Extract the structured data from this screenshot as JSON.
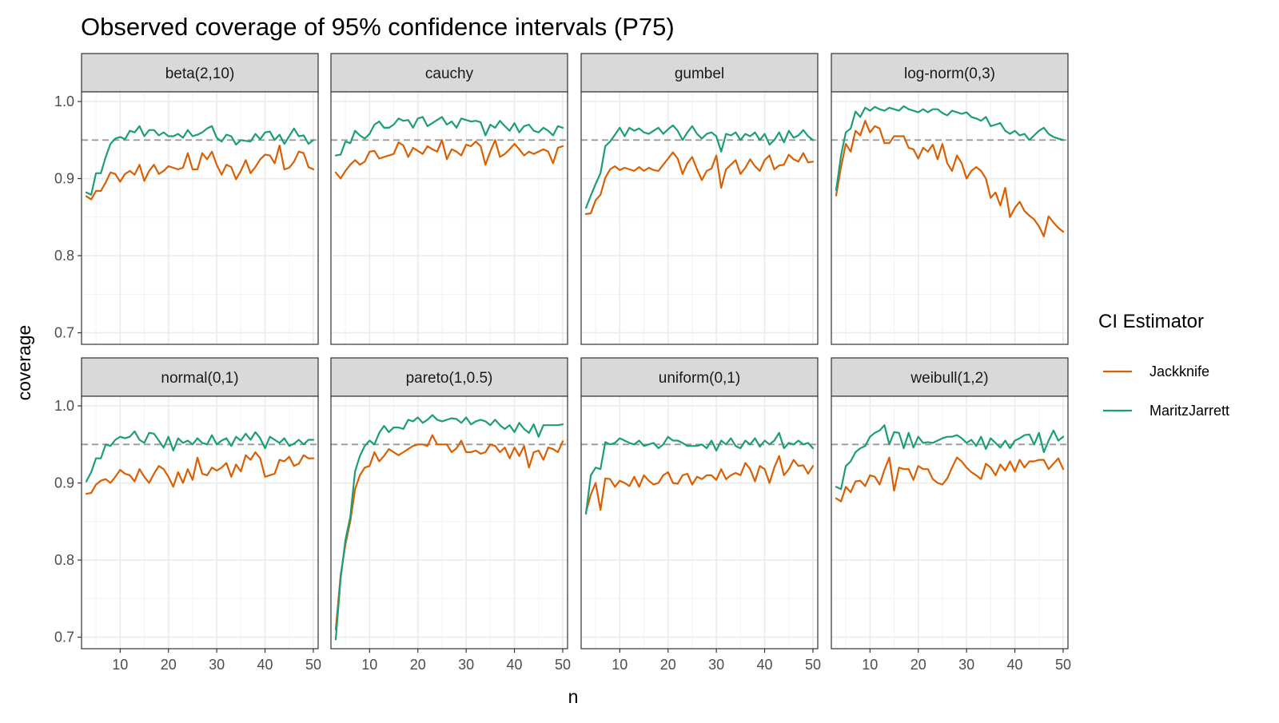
{
  "chart_data": {
    "type": "line",
    "title": "Observed coverage of 95% confidence intervals (P75)",
    "xlabel": "n",
    "ylabel": "coverage",
    "xlim": [
      2,
      51
    ],
    "ylim": [
      0.685,
      1.0125
    ],
    "x_ticks": [
      10,
      20,
      30,
      40,
      50
    ],
    "y_ticks": [
      0.7,
      0.8,
      0.9,
      1.0
    ],
    "y_tick_labels": [
      "0.7",
      "0.8",
      "0.9",
      "1.0"
    ],
    "reference_line": 0.95,
    "grid": true,
    "facet_layout": {
      "rows": 2,
      "cols": 4
    },
    "legend": {
      "title": "CI Estimator",
      "position": "right",
      "entries": [
        {
          "name": "Jackknife",
          "color": "#d95f02"
        },
        {
          "name": "MaritzJarrett",
          "color": "#1b9e77"
        }
      ]
    },
    "x": [
      3,
      4,
      5,
      6,
      7,
      8,
      9,
      10,
      11,
      12,
      13,
      14,
      15,
      16,
      17,
      18,
      19,
      20,
      21,
      22,
      23,
      24,
      25,
      26,
      27,
      28,
      29,
      30,
      31,
      32,
      33,
      34,
      35,
      36,
      37,
      38,
      39,
      40,
      41,
      42,
      43,
      44,
      45,
      46,
      47,
      48,
      49,
      50
    ],
    "panels": [
      {
        "label": "beta(2,10)",
        "series": [
          {
            "name": "Jackknife",
            "values": [
              0.877,
              0.873,
              0.884,
              0.884,
              0.895,
              0.908,
              0.906,
              0.896,
              0.906,
              0.91,
              0.905,
              0.918,
              0.897,
              0.91,
              0.918,
              0.906,
              0.91,
              0.916,
              0.914,
              0.912,
              0.914,
              0.933,
              0.912,
              0.912,
              0.933,
              0.925,
              0.935,
              0.918,
              0.905,
              0.918,
              0.915,
              0.899,
              0.91,
              0.924,
              0.907,
              0.915,
              0.925,
              0.931,
              0.93,
              0.92,
              0.943,
              0.912,
              0.914,
              0.922,
              0.935,
              0.933,
              0.915,
              0.912
            ]
          },
          {
            "name": "MaritzJarrett",
            "values": [
              0.882,
              0.879,
              0.907,
              0.907,
              0.928,
              0.945,
              0.952,
              0.954,
              0.951,
              0.962,
              0.96,
              0.968,
              0.955,
              0.963,
              0.963,
              0.956,
              0.96,
              0.955,
              0.955,
              0.958,
              0.953,
              0.963,
              0.955,
              0.957,
              0.96,
              0.965,
              0.968,
              0.953,
              0.948,
              0.957,
              0.955,
              0.944,
              0.95,
              0.949,
              0.948,
              0.958,
              0.951,
              0.96,
              0.961,
              0.95,
              0.957,
              0.945,
              0.955,
              0.965,
              0.955,
              0.956,
              0.945,
              0.95
            ]
          }
        ]
      },
      {
        "label": "cauchy",
        "series": [
          {
            "name": "Jackknife",
            "values": [
              0.908,
              0.9,
              0.91,
              0.918,
              0.924,
              0.918,
              0.922,
              0.935,
              0.936,
              0.926,
              0.928,
              0.93,
              0.932,
              0.947,
              0.943,
              0.928,
              0.94,
              0.936,
              0.932,
              0.942,
              0.938,
              0.935,
              0.95,
              0.925,
              0.938,
              0.935,
              0.93,
              0.944,
              0.942,
              0.948,
              0.942,
              0.918,
              0.935,
              0.95,
              0.928,
              0.932,
              0.938,
              0.945,
              0.938,
              0.93,
              0.935,
              0.932,
              0.935,
              0.938,
              0.935,
              0.92,
              0.94,
              0.942
            ]
          },
          {
            "name": "MaritzJarrett",
            "values": [
              0.93,
              0.931,
              0.948,
              0.946,
              0.962,
              0.956,
              0.952,
              0.958,
              0.97,
              0.974,
              0.966,
              0.966,
              0.97,
              0.978,
              0.975,
              0.976,
              0.966,
              0.978,
              0.98,
              0.968,
              0.972,
              0.976,
              0.98,
              0.97,
              0.974,
              0.966,
              0.978,
              0.976,
              0.974,
              0.975,
              0.973,
              0.956,
              0.97,
              0.966,
              0.975,
              0.968,
              0.962,
              0.972,
              0.96,
              0.968,
              0.97,
              0.962,
              0.96,
              0.966,
              0.962,
              0.956,
              0.968,
              0.966
            ]
          }
        ]
      },
      {
        "label": "gumbel",
        "series": [
          {
            "name": "Jackknife",
            "values": [
              0.854,
              0.855,
              0.872,
              0.879,
              0.901,
              0.912,
              0.916,
              0.911,
              0.914,
              0.912,
              0.91,
              0.915,
              0.91,
              0.914,
              0.911,
              0.91,
              0.918,
              0.926,
              0.934,
              0.926,
              0.906,
              0.92,
              0.928,
              0.912,
              0.898,
              0.91,
              0.913,
              0.93,
              0.888,
              0.912,
              0.918,
              0.924,
              0.906,
              0.914,
              0.925,
              0.916,
              0.91,
              0.924,
              0.93,
              0.912,
              0.917,
              0.918,
              0.931,
              0.925,
              0.922,
              0.933,
              0.921,
              0.922
            ]
          },
          {
            "name": "MaritzJarrett",
            "values": [
              0.862,
              0.878,
              0.893,
              0.907,
              0.942,
              0.948,
              0.957,
              0.966,
              0.955,
              0.966,
              0.962,
              0.965,
              0.96,
              0.958,
              0.962,
              0.966,
              0.958,
              0.964,
              0.969,
              0.962,
              0.95,
              0.96,
              0.968,
              0.958,
              0.952,
              0.958,
              0.96,
              0.955,
              0.935,
              0.958,
              0.956,
              0.96,
              0.95,
              0.958,
              0.955,
              0.96,
              0.95,
              0.958,
              0.944,
              0.95,
              0.96,
              0.947,
              0.962,
              0.953,
              0.956,
              0.963,
              0.955,
              0.95
            ]
          }
        ]
      },
      {
        "label": "log-norm(0,3)",
        "series": [
          {
            "name": "Jackknife",
            "values": [
              0.878,
              0.915,
              0.945,
              0.935,
              0.962,
              0.956,
              0.975,
              0.96,
              0.968,
              0.965,
              0.946,
              0.946,
              0.955,
              0.955,
              0.955,
              0.94,
              0.938,
              0.926,
              0.94,
              0.935,
              0.944,
              0.925,
              0.945,
              0.92,
              0.91,
              0.93,
              0.92,
              0.9,
              0.91,
              0.915,
              0.91,
              0.9,
              0.875,
              0.882,
              0.865,
              0.888,
              0.85,
              0.862,
              0.87,
              0.858,
              0.852,
              0.847,
              0.838,
              0.825,
              0.851,
              0.843,
              0.836,
              0.831
            ]
          },
          {
            "name": "MaritzJarrett",
            "values": [
              0.885,
              0.93,
              0.96,
              0.965,
              0.987,
              0.98,
              0.992,
              0.988,
              0.993,
              0.99,
              0.988,
              0.992,
              0.99,
              0.988,
              0.994,
              0.99,
              0.988,
              0.986,
              0.99,
              0.986,
              0.99,
              0.99,
              0.985,
              0.982,
              0.988,
              0.986,
              0.984,
              0.986,
              0.98,
              0.978,
              0.975,
              0.98,
              0.968,
              0.97,
              0.972,
              0.962,
              0.958,
              0.962,
              0.956,
              0.958,
              0.95,
              0.956,
              0.962,
              0.966,
              0.958,
              0.954,
              0.952,
              0.95
            ]
          }
        ]
      },
      {
        "label": "normal(0,1)",
        "series": [
          {
            "name": "Jackknife",
            "values": [
              0.886,
              0.887,
              0.898,
              0.903,
              0.905,
              0.9,
              0.908,
              0.917,
              0.912,
              0.91,
              0.902,
              0.918,
              0.908,
              0.9,
              0.912,
              0.922,
              0.918,
              0.908,
              0.895,
              0.914,
              0.9,
              0.918,
              0.904,
              0.933,
              0.912,
              0.91,
              0.92,
              0.916,
              0.92,
              0.926,
              0.908,
              0.924,
              0.915,
              0.936,
              0.93,
              0.94,
              0.932,
              0.908,
              0.91,
              0.912,
              0.93,
              0.928,
              0.934,
              0.922,
              0.925,
              0.936,
              0.932,
              0.932
            ]
          },
          {
            "name": "MaritzJarrett",
            "values": [
              0.902,
              0.914,
              0.932,
              0.932,
              0.95,
              0.948,
              0.956,
              0.96,
              0.958,
              0.96,
              0.967,
              0.956,
              0.952,
              0.965,
              0.964,
              0.955,
              0.946,
              0.96,
              0.942,
              0.958,
              0.952,
              0.955,
              0.95,
              0.958,
              0.952,
              0.95,
              0.962,
              0.95,
              0.955,
              0.958,
              0.948,
              0.96,
              0.955,
              0.964,
              0.956,
              0.966,
              0.958,
              0.945,
              0.96,
              0.956,
              0.952,
              0.958,
              0.948,
              0.951,
              0.956,
              0.95,
              0.956,
              0.956
            ]
          }
        ]
      },
      {
        "label": "pareto(1,0.5)",
        "series": [
          {
            "name": "Jackknife",
            "values": [
              0.71,
              0.78,
              0.82,
              0.85,
              0.892,
              0.91,
              0.92,
              0.922,
              0.94,
              0.928,
              0.935,
              0.944,
              0.94,
              0.936,
              0.94,
              0.944,
              0.948,
              0.95,
              0.95,
              0.948,
              0.962,
              0.95,
              0.95,
              0.95,
              0.94,
              0.945,
              0.955,
              0.94,
              0.94,
              0.942,
              0.938,
              0.94,
              0.95,
              0.948,
              0.94,
              0.946,
              0.932,
              0.946,
              0.935,
              0.948,
              0.92,
              0.94,
              0.942,
              0.93,
              0.946,
              0.944,
              0.94,
              0.954
            ]
          },
          {
            "name": "MaritzJarrett",
            "values": [
              0.697,
              0.776,
              0.826,
              0.856,
              0.915,
              0.935,
              0.948,
              0.955,
              0.95,
              0.965,
              0.974,
              0.966,
              0.972,
              0.972,
              0.97,
              0.982,
              0.98,
              0.985,
              0.978,
              0.982,
              0.988,
              0.982,
              0.98,
              0.982,
              0.984,
              0.983,
              0.978,
              0.985,
              0.976,
              0.98,
              0.982,
              0.98,
              0.975,
              0.982,
              0.975,
              0.97,
              0.975,
              0.966,
              0.978,
              0.97,
              0.965,
              0.976,
              0.96,
              0.975,
              0.975,
              0.975,
              0.975,
              0.976
            ]
          }
        ]
      },
      {
        "label": "uniform(0,1)",
        "series": [
          {
            "name": "Jackknife",
            "values": [
              0.862,
              0.885,
              0.9,
              0.865,
              0.906,
              0.905,
              0.895,
              0.903,
              0.9,
              0.896,
              0.908,
              0.895,
              0.91,
              0.903,
              0.898,
              0.9,
              0.91,
              0.914,
              0.9,
              0.899,
              0.91,
              0.912,
              0.898,
              0.908,
              0.905,
              0.91,
              0.91,
              0.904,
              0.918,
              0.905,
              0.91,
              0.913,
              0.91,
              0.926,
              0.918,
              0.902,
              0.922,
              0.918,
              0.9,
              0.92,
              0.935,
              0.91,
              0.918,
              0.93,
              0.922,
              0.923,
              0.912,
              0.922
            ]
          },
          {
            "name": "MaritzJarrett",
            "values": [
              0.86,
              0.91,
              0.92,
              0.918,
              0.953,
              0.95,
              0.952,
              0.958,
              0.955,
              0.952,
              0.95,
              0.955,
              0.948,
              0.95,
              0.952,
              0.945,
              0.95,
              0.96,
              0.955,
              0.955,
              0.952,
              0.948,
              0.948,
              0.948,
              0.95,
              0.945,
              0.955,
              0.942,
              0.955,
              0.95,
              0.958,
              0.948,
              0.945,
              0.955,
              0.95,
              0.958,
              0.947,
              0.955,
              0.95,
              0.955,
              0.965,
              0.945,
              0.952,
              0.95,
              0.955,
              0.95,
              0.952,
              0.945
            ]
          }
        ]
      },
      {
        "label": "weibull(1,2)",
        "series": [
          {
            "name": "Jackknife",
            "values": [
              0.88,
              0.876,
              0.895,
              0.888,
              0.902,
              0.903,
              0.896,
              0.91,
              0.908,
              0.898,
              0.917,
              0.933,
              0.89,
              0.92,
              0.918,
              0.918,
              0.904,
              0.922,
              0.918,
              0.918,
              0.905,
              0.9,
              0.898,
              0.906,
              0.92,
              0.933,
              0.928,
              0.92,
              0.914,
              0.91,
              0.905,
              0.925,
              0.92,
              0.91,
              0.924,
              0.916,
              0.928,
              0.915,
              0.93,
              0.92,
              0.928,
              0.928,
              0.93,
              0.93,
              0.918,
              0.925,
              0.932,
              0.918
            ]
          },
          {
            "name": "MaritzJarrett",
            "values": [
              0.895,
              0.892,
              0.922,
              0.928,
              0.94,
              0.945,
              0.948,
              0.96,
              0.965,
              0.968,
              0.975,
              0.95,
              0.966,
              0.965,
              0.945,
              0.965,
              0.946,
              0.96,
              0.952,
              0.953,
              0.952,
              0.955,
              0.958,
              0.96,
              0.96,
              0.962,
              0.958,
              0.952,
              0.956,
              0.948,
              0.96,
              0.944,
              0.958,
              0.952,
              0.946,
              0.955,
              0.945,
              0.955,
              0.958,
              0.962,
              0.963,
              0.95,
              0.965,
              0.94,
              0.955,
              0.968,
              0.955,
              0.96
            ]
          }
        ]
      }
    ]
  }
}
